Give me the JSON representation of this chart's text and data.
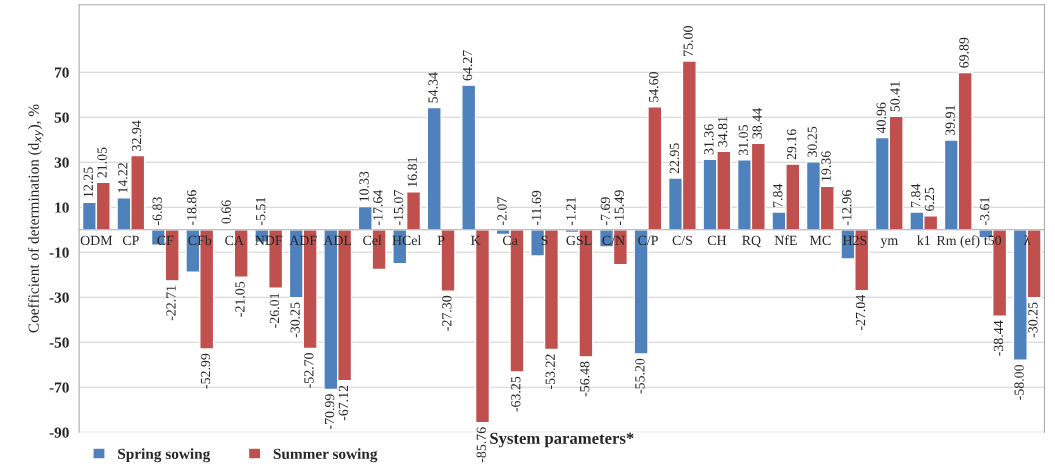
{
  "chart_data": {
    "type": "bar",
    "xlabel": "System parameters*",
    "ylabel": "Coefficient of determination (d$_{xy}$), %",
    "categories": [
      "ODM",
      "CP",
      "CF",
      "CFb",
      "CA",
      "NDF",
      "ADF",
      "ADL",
      "Cel",
      "HCel",
      "P",
      "K",
      "Ca",
      "S",
      "GSL",
      "C/N",
      "C/P",
      "C/S",
      "CH",
      "RQ",
      "NfE",
      "MC",
      "H2S",
      "ym",
      "k1",
      "Rm (ef)",
      "t50",
      "λ"
    ],
    "series": [
      {
        "name": "Spring sowing",
        "color": "#4f81bd",
        "values": [
          12.25,
          14.22,
          -6.83,
          -18.86,
          0.66,
          -5.51,
          -30.25,
          -70.99,
          10.33,
          -15.07,
          54.34,
          64.27,
          -2.07,
          -11.69,
          -1.21,
          -7.69,
          -55.2,
          22.95,
          31.36,
          31.05,
          7.84,
          30.25,
          -12.96,
          40.96,
          7.84,
          39.91,
          -3.61,
          -58.0
        ],
        "value_labels": [
          "12.25",
          "14.22",
          "-6.83",
          "-18.86",
          "0.66",
          "-5.51",
          "-30.25",
          "-70.99",
          "10.33",
          "-15.07",
          "54.34",
          "64.27",
          "-2.07",
          "-11.69",
          "-1.21",
          "-7.69",
          "-55.20",
          "22.95",
          "31.36",
          "31.05",
          "7.84",
          "30.25",
          "-12.96",
          "40.96",
          "7.84",
          "39.91",
          "-3.61",
          "-58.00"
        ]
      },
      {
        "name": "Summer sowing",
        "color": "#c0504d",
        "values": [
          21.05,
          32.94,
          -22.71,
          -52.99,
          -21.05,
          -26.01,
          -52.7,
          -67.12,
          -17.64,
          16.81,
          -27.3,
          -85.76,
          -63.25,
          -53.22,
          -56.48,
          -15.49,
          54.6,
          75.0,
          34.81,
          38.44,
          29.16,
          19.36,
          -27.04,
          50.41,
          6.25,
          69.89,
          -38.44,
          -30.25
        ],
        "value_labels": [
          "21.05",
          "32.94",
          "-22.71",
          "-52.99",
          "-21.05",
          "-26.01",
          "-52.70",
          "-67.12",
          "-17.64",
          "16.81",
          "-27.30",
          "-85.76",
          "-63.25",
          "-53.22",
          "-56.48",
          "-15.49",
          "54.60",
          "75.00",
          "34.81",
          "38.44",
          "29.16",
          "19.36",
          "-27.04",
          "50.41",
          "6.25",
          "69.89",
          "-38.44",
          "-30.25"
        ]
      }
    ],
    "ylim": [
      -90,
      100
    ],
    "yticks": [
      -90,
      -70,
      -50,
      -30,
      -10,
      10,
      30,
      50,
      70
    ],
    "grid": "y",
    "legend": "bottom left"
  }
}
